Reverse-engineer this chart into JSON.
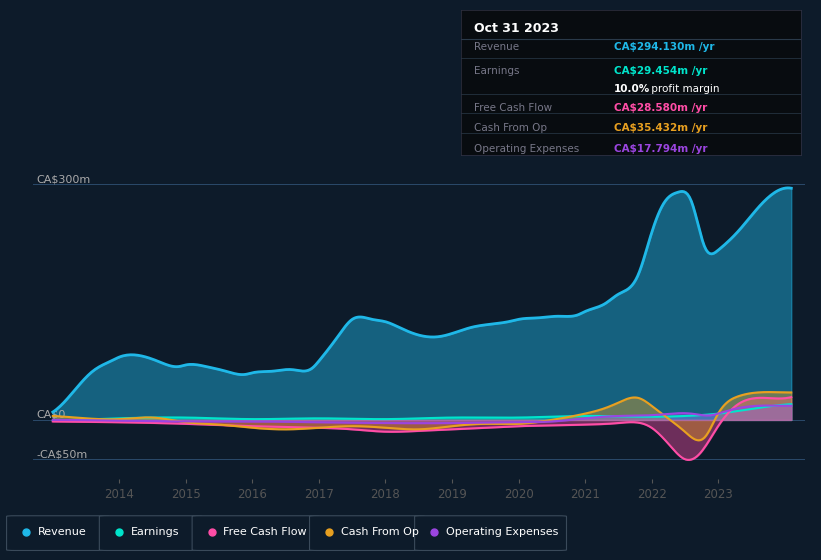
{
  "bg_color": "#0d1b2a",
  "plot_bg_color": "#0d1b2a",
  "y_labels": [
    "CA$300m",
    "CA$0",
    "-CA$50m"
  ],
  "y_values": [
    300,
    0,
    -50
  ],
  "x_ticks": [
    2014,
    2015,
    2016,
    2017,
    2018,
    2019,
    2020,
    2021,
    2022,
    2023
  ],
  "ylim": [
    -75,
    335
  ],
  "xlim_start": 2012.7,
  "xlim_end": 2024.3,
  "line_colors": {
    "revenue": "#1fb8e8",
    "earnings": "#00e5cc",
    "free_cash_flow": "#ff4da6",
    "cash_from_op": "#e8a020",
    "operating_expenses": "#9b45e0"
  },
  "legend_labels": [
    "Revenue",
    "Earnings",
    "Free Cash Flow",
    "Cash From Op",
    "Operating Expenses"
  ],
  "tooltip": {
    "date": "Oct 31 2023",
    "revenue": "CA$294.130m",
    "earnings": "CA$29.454m",
    "profit_margin": "10.0%",
    "free_cash_flow": "CA$28.580m",
    "cash_from_op": "CA$35.432m",
    "operating_expenses": "CA$17.794m"
  },
  "revenue_x": [
    2013.0,
    2013.3,
    2013.6,
    2013.9,
    2014.0,
    2014.3,
    2014.6,
    2014.9,
    2015.0,
    2015.3,
    2015.6,
    2015.9,
    2016.0,
    2016.3,
    2016.6,
    2016.9,
    2017.0,
    2017.3,
    2017.5,
    2017.8,
    2018.0,
    2018.2,
    2018.5,
    2018.8,
    2019.0,
    2019.3,
    2019.6,
    2019.9,
    2020.0,
    2020.3,
    2020.6,
    2020.9,
    2021.0,
    2021.3,
    2021.5,
    2021.8,
    2022.0,
    2022.2,
    2022.4,
    2022.6,
    2022.8,
    2023.0,
    2023.3,
    2023.6,
    2023.9,
    2024.1
  ],
  "revenue_y": [
    10,
    35,
    62,
    76,
    80,
    82,
    74,
    68,
    70,
    68,
    62,
    58,
    60,
    62,
    64,
    66,
    75,
    108,
    128,
    128,
    125,
    118,
    108,
    106,
    110,
    118,
    122,
    126,
    128,
    130,
    132,
    134,
    138,
    148,
    160,
    185,
    238,
    278,
    290,
    278,
    220,
    216,
    240,
    270,
    292,
    295
  ],
  "earnings_x": [
    2013.0,
    2014.0,
    2015.0,
    2016.0,
    2017.0,
    2018.0,
    2019.0,
    2020.0,
    2021.0,
    2022.0,
    2022.5,
    2023.0,
    2023.5,
    2024.1
  ],
  "earnings_y": [
    -1,
    2,
    3,
    1,
    2,
    1,
    3,
    3,
    5,
    4,
    5,
    8,
    14,
    20
  ],
  "fcf_x": [
    2013.0,
    2014.0,
    2015.0,
    2016.0,
    2017.0,
    2017.5,
    2018.0,
    2018.5,
    2019.0,
    2019.5,
    2020.0,
    2020.5,
    2021.0,
    2021.5,
    2022.0,
    2022.3,
    2022.5,
    2022.7,
    2023.0,
    2023.3,
    2023.6,
    2024.1
  ],
  "fcf_y": [
    -2,
    -3,
    -5,
    -8,
    -10,
    -12,
    -15,
    -14,
    -12,
    -10,
    -8,
    -7,
    -6,
    -4,
    -10,
    -35,
    -50,
    -45,
    -8,
    20,
    28,
    29
  ],
  "cfo_x": [
    2013.0,
    2013.5,
    2014.0,
    2014.5,
    2015.0,
    2015.5,
    2016.0,
    2016.5,
    2017.0,
    2017.5,
    2018.0,
    2018.5,
    2019.0,
    2019.5,
    2020.0,
    2020.5,
    2021.0,
    2021.3,
    2021.5,
    2021.8,
    2022.0,
    2022.2,
    2022.5,
    2022.8,
    2023.0,
    2023.3,
    2023.6,
    2024.1
  ],
  "cfo_y": [
    5,
    2,
    1,
    3,
    -3,
    -6,
    -10,
    -12,
    -10,
    -8,
    -10,
    -12,
    -8,
    -5,
    -5,
    0,
    8,
    15,
    22,
    28,
    18,
    5,
    -15,
    -22,
    8,
    30,
    35,
    35
  ],
  "opex_x": [
    2013.0,
    2014.0,
    2015.0,
    2016.0,
    2017.0,
    2018.0,
    2019.0,
    2020.0,
    2020.5,
    2021.0,
    2021.5,
    2022.0,
    2022.3,
    2022.6,
    2022.9,
    2023.0,
    2023.3,
    2023.6,
    2024.1
  ],
  "opex_y": [
    0,
    -1,
    -2,
    -2,
    -3,
    -4,
    -4,
    -3,
    -2,
    2,
    5,
    6,
    8,
    8,
    6,
    8,
    15,
    18,
    18
  ]
}
